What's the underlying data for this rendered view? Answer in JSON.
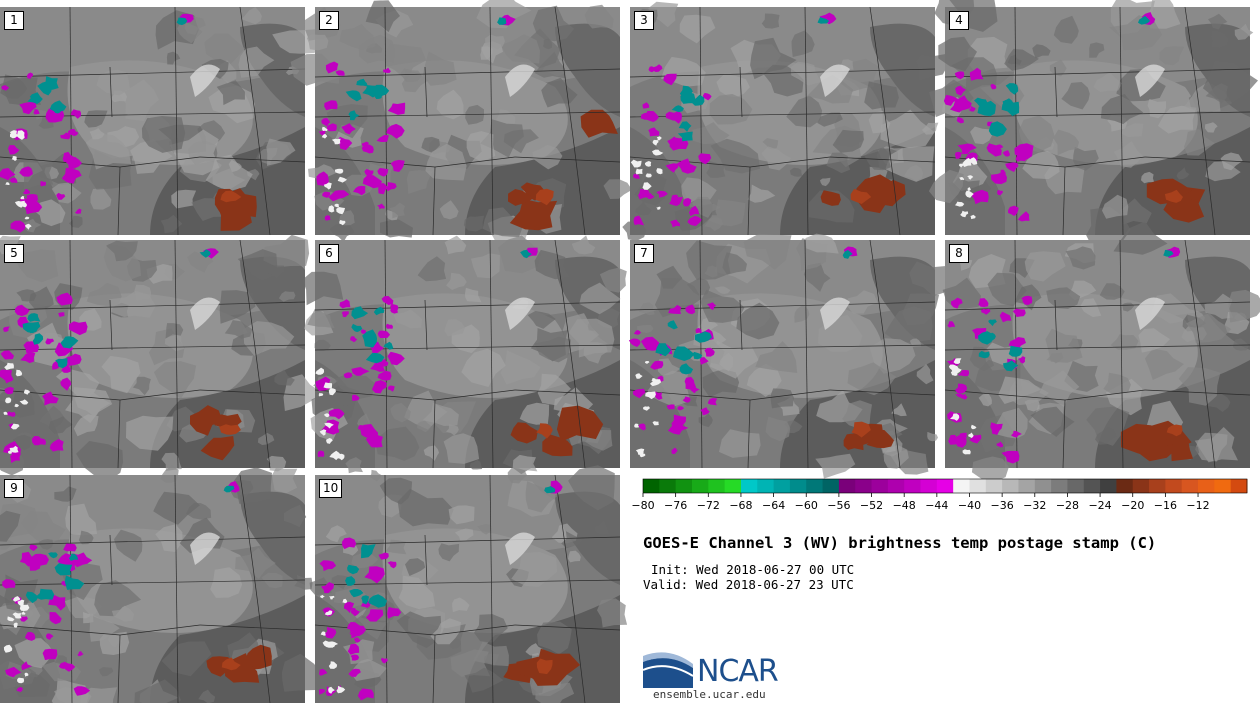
{
  "panels": [
    {
      "label": "1"
    },
    {
      "label": "2"
    },
    {
      "label": "3"
    },
    {
      "label": "4"
    },
    {
      "label": "5"
    },
    {
      "label": "6"
    },
    {
      "label": "7"
    },
    {
      "label": "8"
    },
    {
      "label": "9"
    },
    {
      "label": "10"
    }
  ],
  "colorbar": {
    "colors": [
      "#006400",
      "#0a7a0a",
      "#119211",
      "#18aa18",
      "#1fc21f",
      "#26da26",
      "#00c8c8",
      "#00b4b4",
      "#00a0a0",
      "#008c8c",
      "#007878",
      "#006464",
      "#7a007a",
      "#8a008a",
      "#9c009c",
      "#ae00ae",
      "#c000c0",
      "#d400d4",
      "#e600e6",
      "#f4f4f4",
      "#e0e0e0",
      "#cccccc",
      "#b8b8b8",
      "#a4a4a4",
      "#909090",
      "#7c7c7c",
      "#686868",
      "#545454",
      "#404040",
      "#6b2a14",
      "#8a3418",
      "#a8401c",
      "#c24a1e",
      "#d85620",
      "#e86018",
      "#f06a10",
      "#d44a10"
    ],
    "tick_labels": [
      "-80",
      "-76",
      "-72",
      "-68",
      "-64",
      "-60",
      "-56",
      "-52",
      "-48",
      "-44",
      "-40",
      "-36",
      "-32",
      "-28",
      "-24",
      "-20",
      "-16",
      "-12"
    ]
  },
  "title": "GOES-E Channel 3 (WV) brightness temp postage stamp (C)",
  "init": "Init: Wed 2018-06-27 00 UTC",
  "valid": "Valid: Wed 2018-06-27 23 UTC",
  "logo_text": "NCAR",
  "site": "ensemble.ucar.edu"
}
